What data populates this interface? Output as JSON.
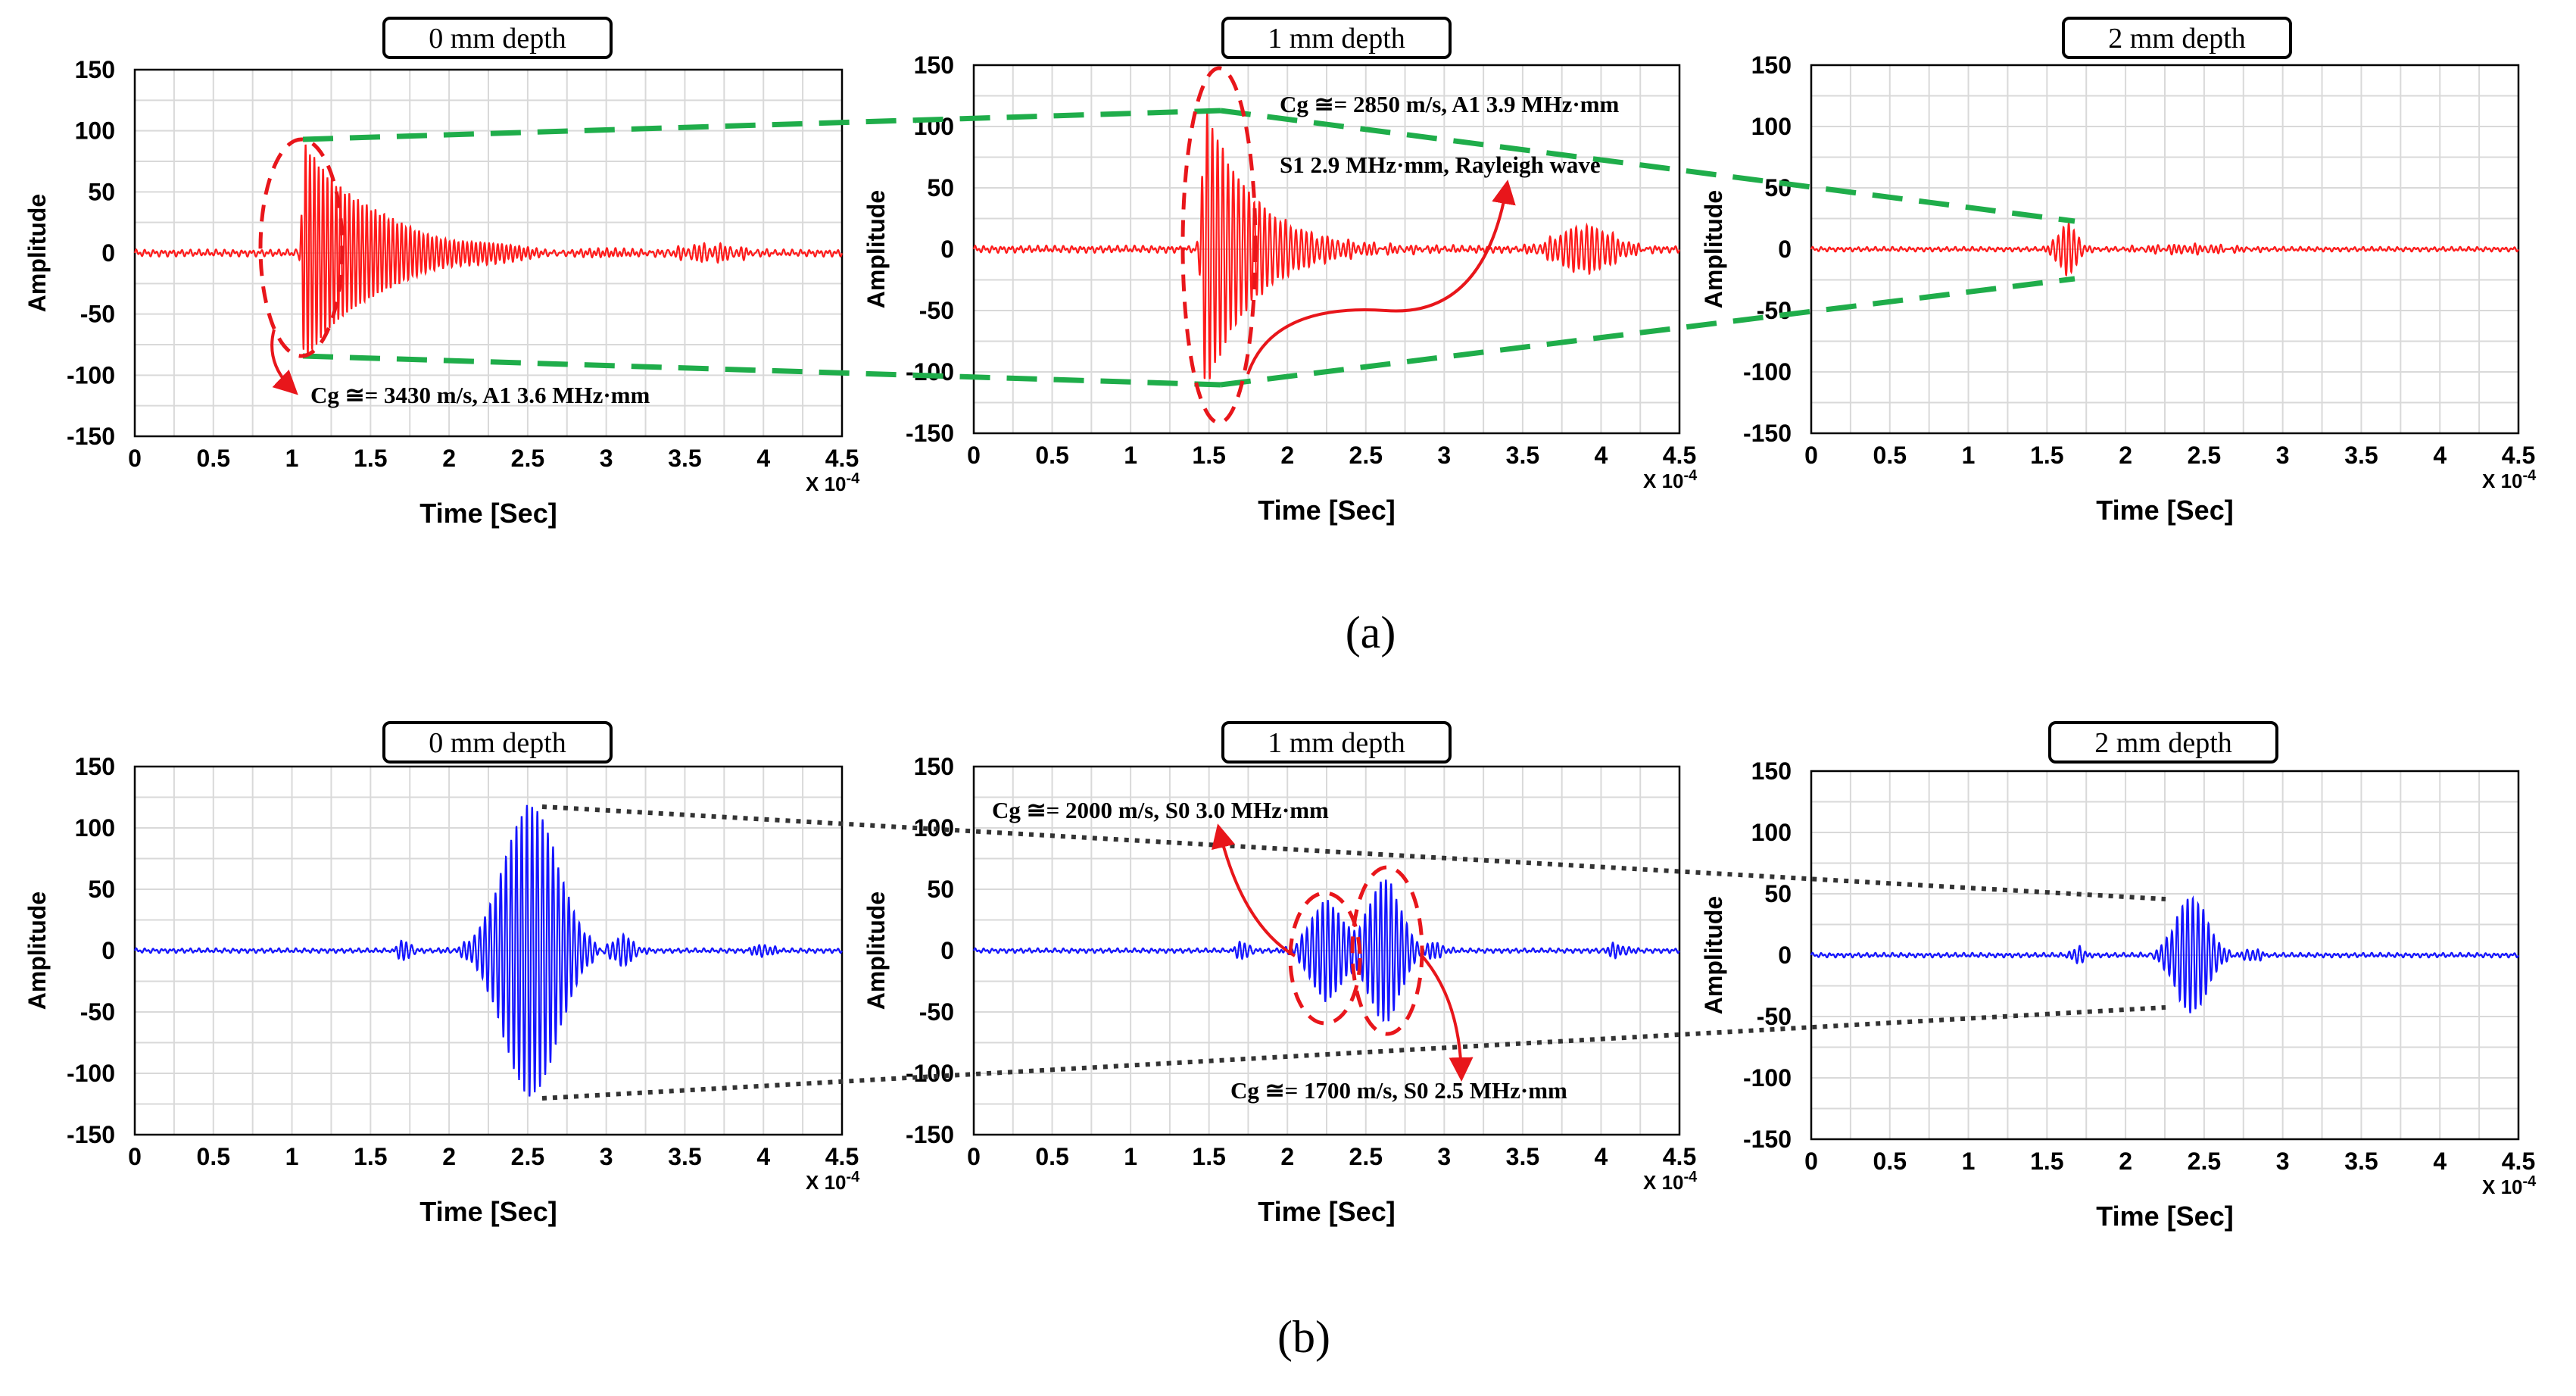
{
  "figure": {
    "label_a": "(a)",
    "label_b": "(b)"
  },
  "colors": {
    "signal_a": "#ff1a1a",
    "signal_b": "#1414ff",
    "annotation_red": "#e8161b",
    "link_green": "#1fad4a",
    "link_dotted": "#333333",
    "grid": "#d9d9d9",
    "axes": "#000000"
  },
  "chart_data": [
    {
      "type": "line",
      "row": "a",
      "title": "0 mm depth",
      "xlabel": "Time [Sec]",
      "ylabel": "Amplitude",
      "xexp": "X 10-4",
      "xlim": [
        0,
        4.5
      ],
      "ylim": [
        -150,
        150
      ],
      "xticks": [
        "0",
        "0.5",
        "1",
        "1.5",
        "2",
        "2.5",
        "3",
        "3.5",
        "4",
        "4.5"
      ],
      "yticks": [
        "150",
        "100",
        "50",
        "0",
        "-50",
        "-100",
        "-150"
      ],
      "series": [
        {
          "name": "signal",
          "packets": [
            {
              "t0": 1.08,
              "amp": 90,
              "rise": 0.02,
              "decay": 0.45,
              "freq": 36
            },
            {
              "t0": 3.65,
              "amp": 6,
              "sigma": 0.18,
              "freq": 30
            }
          ],
          "noise": 3
        }
      ],
      "annotations": [
        {
          "text": "Cg ≅= 3430 m/s, A1 3.6 MHz·mm"
        }
      ]
    },
    {
      "type": "line",
      "row": "a",
      "title": "1 mm depth",
      "xlabel": "Time [Sec]",
      "ylabel": "Amplitude",
      "xexp": "X 10-4",
      "xlim": [
        0,
        4.5
      ],
      "ylim": [
        -150,
        150
      ],
      "xticks": [
        "0",
        "0.5",
        "1",
        "1.5",
        "2",
        "2.5",
        "3",
        "3.5",
        "4",
        "4.5"
      ],
      "yticks": [
        "150",
        "100",
        "50",
        "0",
        "-50",
        "-100",
        "-150"
      ],
      "series": [
        {
          "name": "signal",
          "packets": [
            {
              "t0": 1.48,
              "amp": 115,
              "rise": 0.03,
              "decay": 0.3,
              "freq": 30
            },
            {
              "t0": 3.9,
              "amp": 18,
              "sigma": 0.17,
              "freq": 30
            }
          ],
          "noise": 3
        }
      ],
      "annotations": [
        {
          "text": "Cg ≅= 2850 m/s, A1 3.9 MHz·mm"
        },
        {
          "text": "S1 2.9 MHz·mm, Rayleigh wave"
        }
      ]
    },
    {
      "type": "line",
      "row": "a",
      "title": "2 mm depth",
      "xlabel": "Time [Sec]",
      "ylabel": "Amplitude",
      "xexp": "X 10-4",
      "xlim": [
        0,
        4.5
      ],
      "ylim": [
        -150,
        150
      ],
      "xticks": [
        "0",
        "0.5",
        "1",
        "1.5",
        "2",
        "2.5",
        "3",
        "3.5",
        "4",
        "4.5"
      ],
      "yticks": [
        "150",
        "100",
        "50",
        "0",
        "-50",
        "-100",
        "-150"
      ],
      "series": [
        {
          "name": "signal",
          "packets": [
            {
              "t0": 1.63,
              "amp": 20,
              "sigma": 0.06,
              "freq": 30
            },
            {
              "t0": 2.4,
              "amp": 3,
              "sigma": 0.25,
              "freq": 30
            }
          ],
          "noise": 2
        }
      ],
      "annotations": []
    },
    {
      "type": "line",
      "row": "b",
      "title": "0 mm depth",
      "xlabel": "Time [Sec]",
      "ylabel": "Amplitude",
      "xexp": "X 10-4",
      "xlim": [
        0,
        4.5
      ],
      "ylim": [
        -150,
        150
      ],
      "xticks": [
        "0",
        "0.5",
        "1",
        "1.5",
        "2",
        "2.5",
        "3",
        "3.5",
        "4",
        "4.5"
      ],
      "yticks": [
        "150",
        "100",
        "50",
        "0",
        "-50",
        "-100",
        "-150"
      ],
      "series": [
        {
          "name": "signal",
          "packets": [
            {
              "t0": 2.52,
              "amp": 118,
              "sigma": 0.17,
              "freq": 30
            },
            {
              "t0": 1.72,
              "amp": 8,
              "sigma": 0.04,
              "freq": 30
            },
            {
              "t0": 3.1,
              "amp": 12,
              "sigma": 0.07,
              "freq": 30
            },
            {
              "t0": 4.0,
              "amp": 5,
              "sigma": 0.05,
              "freq": 30
            }
          ],
          "noise": 2
        }
      ],
      "annotations": []
    },
    {
      "type": "line",
      "row": "b",
      "title": "1 mm depth",
      "xlabel": "Time [Sec]",
      "ylabel": "Amplitude",
      "xexp": "X 10-4",
      "xlim": [
        0,
        4.5
      ],
      "ylim": [
        -150,
        150
      ],
      "xticks": [
        "0",
        "0.5",
        "1",
        "1.5",
        "2",
        "2.5",
        "3",
        "3.5",
        "4",
        "4.5"
      ],
      "yticks": [
        "150",
        "100",
        "50",
        "0",
        "-50",
        "-100",
        "-150"
      ],
      "series": [
        {
          "name": "signal",
          "packets": [
            {
              "t0": 2.25,
              "amp": 40,
              "sigma": 0.1,
              "freq": 30
            },
            {
              "t0": 2.62,
              "amp": 58,
              "sigma": 0.1,
              "freq": 30
            },
            {
              "t0": 1.72,
              "amp": 7,
              "sigma": 0.04,
              "freq": 30
            },
            {
              "t0": 2.95,
              "amp": 6,
              "sigma": 0.05,
              "freq": 30
            },
            {
              "t0": 4.1,
              "amp": 5,
              "sigma": 0.06,
              "freq": 30
            }
          ],
          "noise": 2
        }
      ],
      "annotations": [
        {
          "text": "Cg ≅= 2000 m/s, S0 3.0 MHz·mm"
        },
        {
          "text": "Cg ≅= 1700 m/s, S0 2.5 MHz·mm"
        }
      ]
    },
    {
      "type": "line",
      "row": "b",
      "title": "2 mm depth",
      "xlabel": "Time [Sec]",
      "ylabel": "Amplitude",
      "xexp": "X 10-4",
      "xlim": [
        0,
        4.5
      ],
      "ylim": [
        -150,
        150
      ],
      "xticks": [
        "0",
        "0.5",
        "1",
        "1.5",
        "2",
        "2.5",
        "3",
        "3.5",
        "4",
        "4.5"
      ],
      "yticks": [
        "150",
        "100",
        "50",
        "0",
        "-50",
        "-100",
        "-150"
      ],
      "series": [
        {
          "name": "signal",
          "packets": [
            {
              "t0": 2.42,
              "amp": 47,
              "sigma": 0.1,
              "freq": 30
            },
            {
              "t0": 1.7,
              "amp": 8,
              "sigma": 0.03,
              "freq": 30
            },
            {
              "t0": 2.8,
              "amp": 5,
              "sigma": 0.05,
              "freq": 30
            }
          ],
          "noise": 2
        }
      ],
      "annotations": []
    }
  ]
}
